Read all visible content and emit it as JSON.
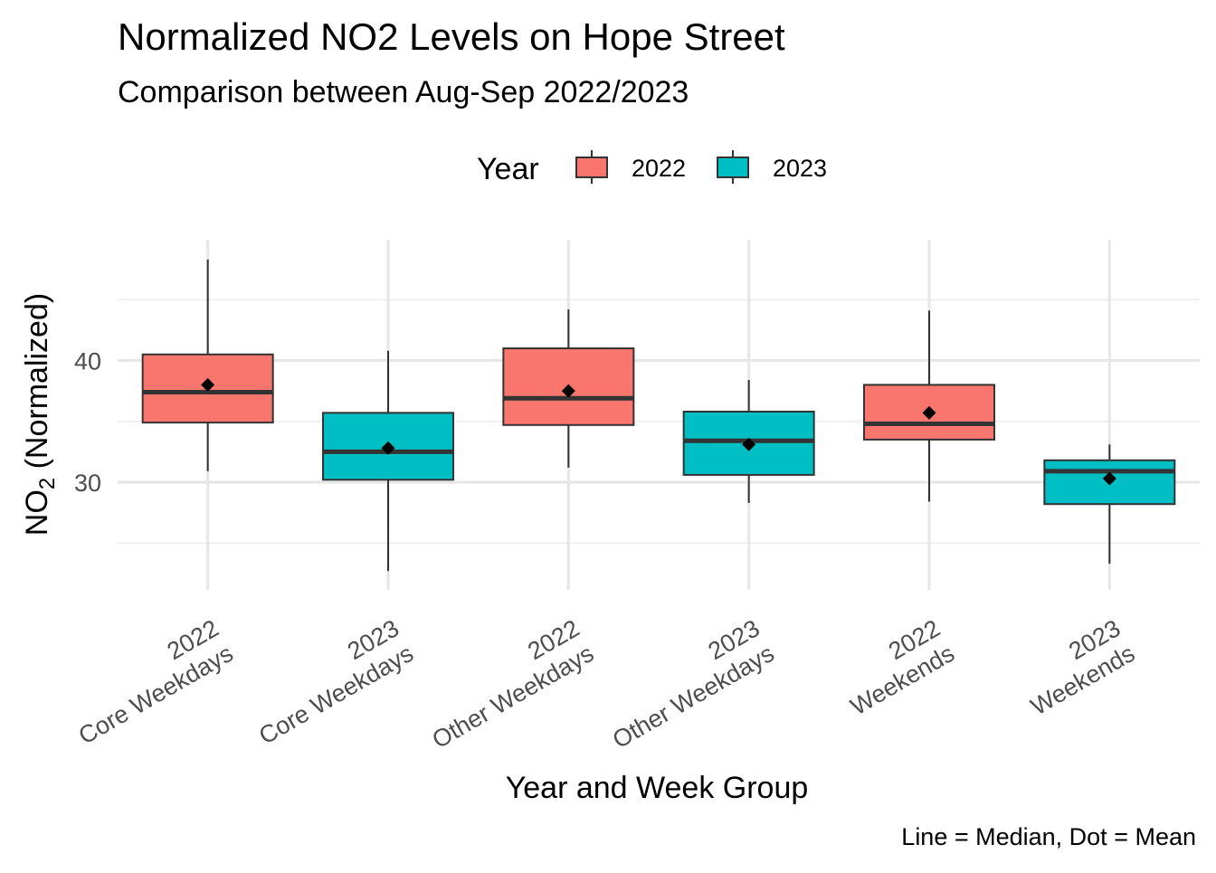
{
  "chart_data": {
    "type": "boxplot",
    "title": "Normalized NO2 Levels on Hope Street",
    "subtitle": "Comparison between Aug-Sep 2022/2023",
    "xlabel": "Year and Week Group",
    "ylabel": {
      "main": "NO",
      "subscript": "2",
      "suffix": " (Normalized)"
    },
    "caption": "Line = Median, Dot = Mean",
    "legend": {
      "title": "Year",
      "position": "top",
      "entries": [
        {
          "label": "2022",
          "color": "#F8766D"
        },
        {
          "label": "2023",
          "color": "#00BFC4"
        }
      ]
    },
    "y_axis": {
      "range": [
        21.3,
        50.2
      ],
      "ticks": [
        30,
        40
      ],
      "minor_gridlines": [
        25,
        35,
        45
      ],
      "grid": true
    },
    "categories": [
      {
        "line1": "2022",
        "line2": "Core Weekdays"
      },
      {
        "line1": "2023",
        "line2": "Core Weekdays"
      },
      {
        "line1": "2022",
        "line2": "Other Weekdays"
      },
      {
        "line1": "2023",
        "line2": "Other Weekdays"
      },
      {
        "line1": "2022",
        "line2": "Weekends"
      },
      {
        "line1": "2023",
        "line2": "Weekends"
      }
    ],
    "boxes": [
      {
        "year": "2022",
        "group": "Core Weekdays",
        "min": 30.9,
        "q1": 34.9,
        "median": 37.4,
        "q3": 40.5,
        "max": 48.3,
        "mean": 38.0
      },
      {
        "year": "2023",
        "group": "Core Weekdays",
        "min": 22.7,
        "q1": 30.2,
        "median": 32.5,
        "q3": 35.7,
        "max": 40.8,
        "mean": 32.8
      },
      {
        "year": "2022",
        "group": "Other Weekdays",
        "min": 31.2,
        "q1": 34.7,
        "median": 36.9,
        "q3": 41.0,
        "max": 44.2,
        "mean": 37.5
      },
      {
        "year": "2023",
        "group": "Other Weekdays",
        "min": 28.3,
        "q1": 30.6,
        "median": 33.4,
        "q3": 35.8,
        "max": 38.4,
        "mean": 33.1
      },
      {
        "year": "2022",
        "group": "Weekends",
        "min": 28.4,
        "q1": 33.5,
        "median": 34.8,
        "q3": 38.0,
        "max": 44.1,
        "mean": 35.7
      },
      {
        "year": "2023",
        "group": "Weekends",
        "min": 23.3,
        "q1": 28.2,
        "median": 30.9,
        "q3": 31.8,
        "max": 33.1,
        "mean": 30.3
      }
    ]
  }
}
